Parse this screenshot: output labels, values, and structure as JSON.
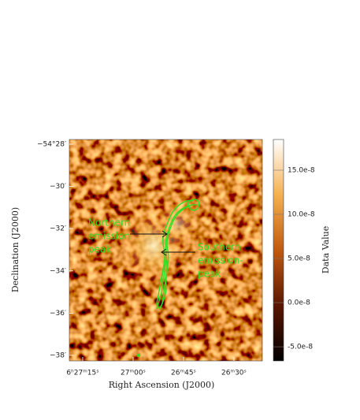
{
  "chart_data": {
    "type": "image",
    "xlabel": "Right Ascension (J2000)",
    "ylabel": "Declination (J2000)",
    "colorbar_label": "Data Value",
    "xlim": [
      96.8291,
      96.5898
    ],
    "ylim": [
      -54.6377,
      -54.463
    ],
    "xticks": [
      {
        "value": 96.8125,
        "label": "6ʰ27ᵐ15ˢ"
      },
      {
        "value": 96.75,
        "label": "27ᵐ00ˢ"
      },
      {
        "value": 96.6875,
        "label": "26ᵐ45ˢ"
      },
      {
        "value": 96.625,
        "label": "26ᵐ30ˢ"
      }
    ],
    "yticks": [
      {
        "value": -54.4667,
        "label": "−54°28′"
      },
      {
        "value": -54.5,
        "label": "−30′"
      },
      {
        "value": -54.5333,
        "label": "−32′"
      },
      {
        "value": -54.5667,
        "label": "−34′"
      },
      {
        "value": -54.6,
        "label": "−36′"
      },
      {
        "value": -54.6333,
        "label": "−38′"
      }
    ],
    "clim": [
      -6.6e-08,
      1.848e-07
    ],
    "cticks": [
      {
        "value": 1.5e-07,
        "label": "15.0e-8"
      },
      {
        "value": 1e-07,
        "label": "10.0e-8"
      },
      {
        "value": 5e-08,
        "label": "5.0e-8"
      },
      {
        "value": 0,
        "label": "0.0e-8"
      },
      {
        "value": -5e-08,
        "label": "-5.0e-8"
      }
    ],
    "annotations": [
      {
        "lines": [
          "Northern",
          "emission",
          "peak"
        ]
      },
      {
        "lines": [
          "Southern",
          "emission-",
          "peak"
        ]
      }
    ]
  }
}
